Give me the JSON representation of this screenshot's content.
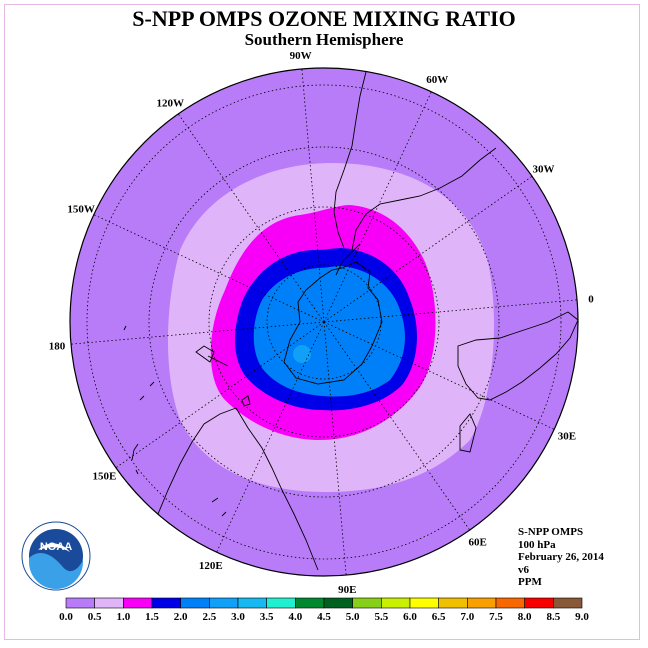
{
  "title": "S-NPP OMPS OZONE MIXING RATIO",
  "subtitle": "Southern Hemisphere",
  "logo_text": "NOAA",
  "longitude_labels": [
    "0",
    "30E",
    "60E",
    "90E",
    "120E",
    "150E",
    "180",
    "150W",
    "120W",
    "90W",
    "60W",
    "30W"
  ],
  "info": {
    "instrument": "S-NPP OMPS",
    "level": "100 hPa",
    "date": "February 26, 2014",
    "version": "v6",
    "units": "PPM"
  },
  "colorbar": {
    "ticks": [
      "0.0",
      "0.5",
      "1.0",
      "1.5",
      "2.0",
      "2.5",
      "3.0",
      "3.5",
      "4.0",
      "4.5",
      "5.0",
      "5.5",
      "6.0",
      "6.5",
      "7.0",
      "7.5",
      "8.0",
      "8.5",
      "9.0"
    ],
    "colors": [
      "#b87cf8",
      "#e0b4f8",
      "#f800f8",
      "#0000e8",
      "#0080f8",
      "#10a0f8",
      "#18b8f0",
      "#20f0d0",
      "#008830",
      "#006020",
      "#88d018",
      "#c8f000",
      "#ffff00",
      "#f0c000",
      "#f8a000",
      "#f86800",
      "#f80000",
      "#885838"
    ]
  },
  "chart_data": {
    "type": "polar-contour-map",
    "projection": "south-polar-stereographic",
    "field": "ozone mixing ratio",
    "contour_levels": [
      0.0,
      0.5,
      1.0,
      1.5,
      2.0,
      2.5,
      3.0,
      3.5,
      4.0,
      4.5,
      5.0,
      5.5,
      6.0,
      6.5,
      7.0,
      7.5,
      8.0,
      8.5,
      9.0
    ],
    "regions_outer_to_inner": [
      {
        "range": [
          0.0,
          0.5
        ],
        "color": "#b87cf8"
      },
      {
        "range": [
          0.5,
          1.0
        ],
        "color": "#e0b4f8"
      },
      {
        "range": [
          1.0,
          1.5
        ],
        "color": "#f800f8"
      },
      {
        "range": [
          1.5,
          2.0
        ],
        "color": "#0000e8"
      },
      {
        "range": [
          2.0,
          2.5
        ],
        "color": "#0080f8"
      },
      {
        "range": [
          2.5,
          3.0
        ],
        "color": "#10a0f8"
      }
    ],
    "grid": true
  }
}
